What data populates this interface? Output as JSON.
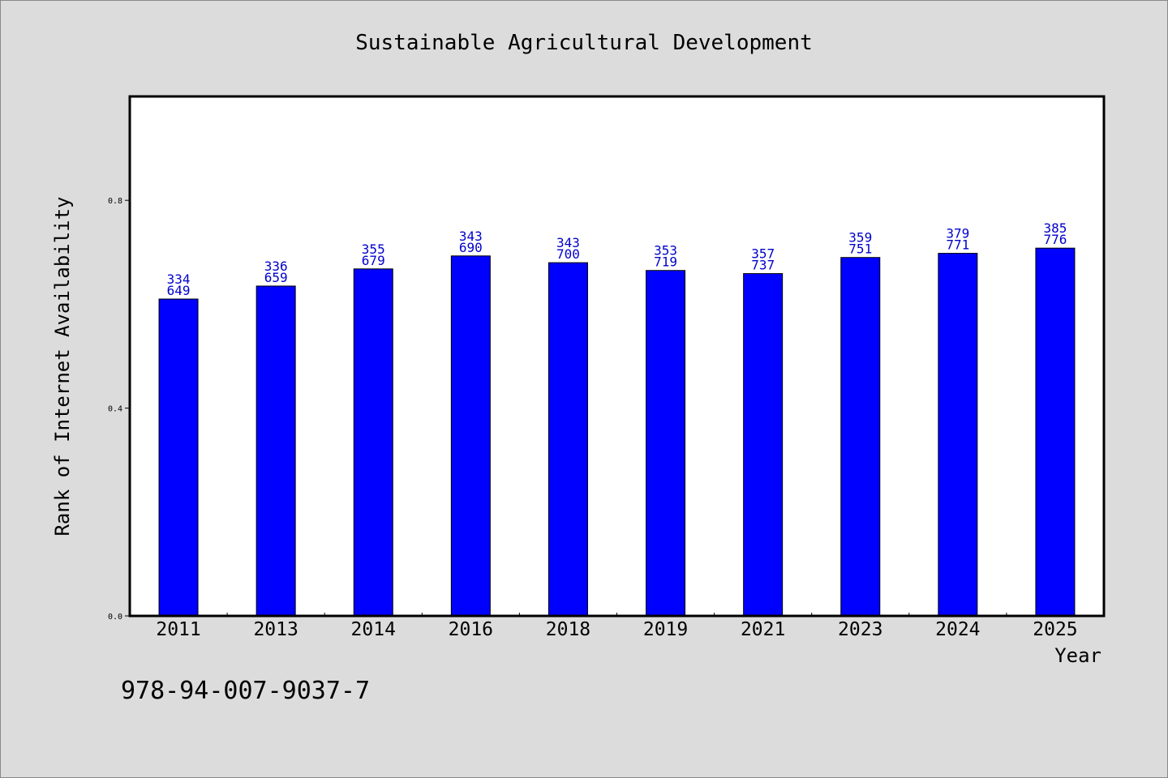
{
  "chart_data": {
    "type": "bar",
    "title": "Sustainable Agricultural Development",
    "xlabel": "Year",
    "ylabel": "Rank of Internet Availability",
    "categories": [
      "2011",
      "2013",
      "2014",
      "2016",
      "2018",
      "2019",
      "2021",
      "2023",
      "2024",
      "2025"
    ],
    "values": [
      0.61,
      0.635,
      0.668,
      0.693,
      0.68,
      0.665,
      0.659,
      0.69,
      0.698,
      0.708
    ],
    "data_labels": [
      [
        "334",
        "649"
      ],
      [
        "336",
        "659"
      ],
      [
        "355",
        "679"
      ],
      [
        "343",
        "690"
      ],
      [
        "343",
        "700"
      ],
      [
        "353",
        "719"
      ],
      [
        "357",
        "737"
      ],
      [
        "359",
        "751"
      ],
      [
        "379",
        "771"
      ],
      [
        "385",
        "776"
      ]
    ],
    "y_ticks": [
      "0.0",
      "0.4",
      "0.8"
    ],
    "ylim": [
      0,
      1.0
    ],
    "grid": false,
    "legend": "none",
    "colors": {
      "bar": "#0000ff",
      "bar_border": "#000000",
      "data_label": "#0000cc",
      "plot_background": "#ffffff",
      "page_background": "#dcdcdc"
    }
  },
  "footer_text": "978-94-007-9037-7"
}
